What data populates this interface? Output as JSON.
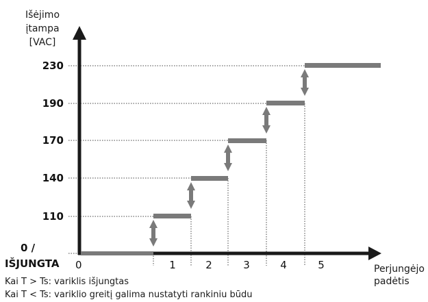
{
  "y_axis_label": [
    "Išėjimo",
    "įtampa",
    "[VAC]"
  ],
  "x_axis_label": [
    "Perjungėjo",
    "padėtis"
  ],
  "zero_label": [
    "0  /",
    "IŠJUNGTA"
  ],
  "x_zero": "0",
  "chart_data": {
    "type": "step",
    "y_ticks": [
      "230",
      "190",
      "170",
      "140",
      "110"
    ],
    "x_positions": [
      "1",
      "2",
      "3",
      "4",
      "5"
    ],
    "steps": [
      {
        "position": "0",
        "voltage": 0
      },
      {
        "position": "1",
        "voltage": 110
      },
      {
        "position": "2",
        "voltage": 140
      },
      {
        "position": "3",
        "voltage": 170
      },
      {
        "position": "4",
        "voltage": 190
      },
      {
        "position": "5",
        "voltage": 230
      }
    ]
  },
  "notes": [
    "Kai T > Ts: variklis išjungtas",
    "Kai T < Ts: variklio greitį galima nustatyti rankiniu būdu"
  ]
}
